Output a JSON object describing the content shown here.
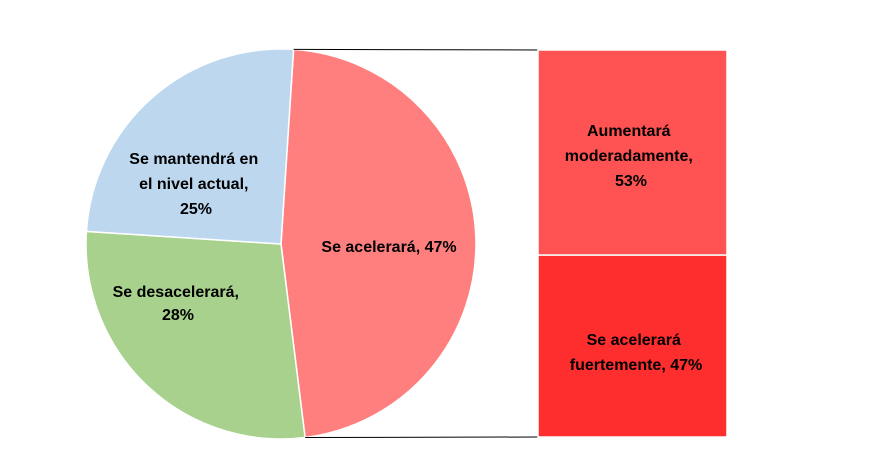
{
  "chart_data": {
    "type": "pie",
    "slices": [
      {
        "label": "Se acelerará",
        "value": 47,
        "color": "#FF7F7F"
      },
      {
        "label": "Se desacelerará",
        "value": 28,
        "color": "#A9D18E"
      },
      {
        "label": "Se mantendrá en el nivel actual",
        "value": 25,
        "color": "#BDD7EE"
      }
    ],
    "breakdown": {
      "of_slice": "Se acelerará",
      "type": "stacked-bar",
      "segments": [
        {
          "label": "Aumentará moderadamente",
          "value": 53,
          "color": "#FF5252"
        },
        {
          "label": "Se acelerará fuertemente",
          "value": 47,
          "color": "#FF2E2E"
        }
      ]
    }
  },
  "labels": {
    "acelerara": [
      "Se acelerará, 47%"
    ],
    "desacelerara": [
      "Se desacelerará,",
      "28%"
    ],
    "mantendra": [
      "Se mantendrá en",
      "el nivel actual,",
      "25%"
    ],
    "moderadamente": [
      "Aumentará",
      "moderadamente,",
      "53%"
    ],
    "fuertemente": [
      "Se acelerará",
      "fuertemente, 47%"
    ]
  }
}
